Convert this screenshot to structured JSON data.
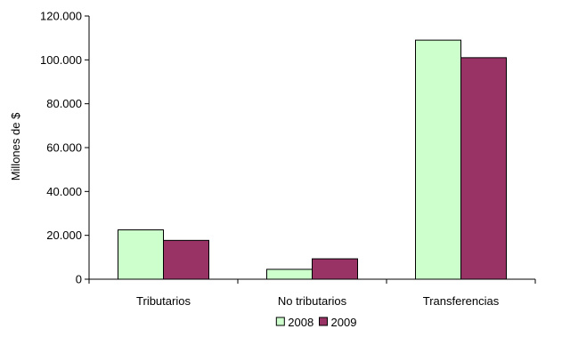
{
  "chart_data": {
    "type": "bar",
    "title": "",
    "xlabel": "",
    "ylabel": "Millones de $",
    "categories": [
      "Tributarios",
      "No tributarios",
      "Transferencias"
    ],
    "series": [
      {
        "name": "2008",
        "values": [
          22500,
          4500,
          109000
        ],
        "color": "#ccffcc"
      },
      {
        "name": "2009",
        "values": [
          17700,
          9300,
          101000
        ],
        "color": "#993366"
      }
    ],
    "ylim": [
      0,
      120000
    ],
    "yticks": [
      0,
      20000,
      40000,
      60000,
      80000,
      100000,
      120000
    ],
    "ytick_labels": [
      "0",
      "20.000",
      "40.000",
      "60.000",
      "80.000",
      "100.000",
      "120.000"
    ],
    "grid": false,
    "legend": "bottom",
    "bar_stroke": "#000000",
    "axis_color": "#000000"
  }
}
